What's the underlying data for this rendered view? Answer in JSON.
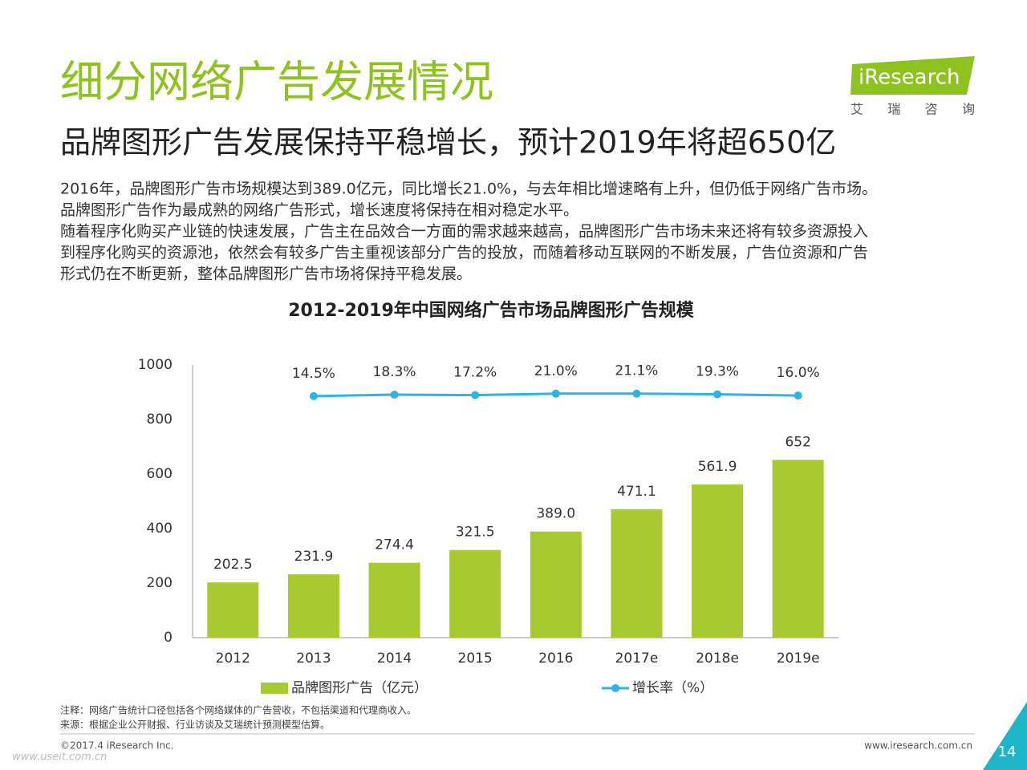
{
  "header": {
    "title": "细分网络广告发展情况",
    "subtitle": "品牌图形广告发展保持平稳增长，预计2019年将超650亿",
    "logo": "iResearch",
    "logo_sub": "艾 瑞 咨 询"
  },
  "body": {
    "lines": [
      "2016年，品牌图形广告市场规模达到389.0亿元，同比增长21.0%，与去年相比增速略有上升，但仍低于网络广告市场。",
      "品牌图形广告作为最成熟的网络广告形式，增长速度将保持在相对稳定水平。",
      "随着程序化购买产业链的快速发展，广告主在品效合一方面的需求越来越高，品牌图形广告市场未来还将有较多资源投入",
      "到程序化购买的资源池，依然会有较多广告主重视该部分广告的投放，而随着移动互联网的不断发展，广告位资源和广告",
      "形式仍在不断更新，整体品牌图形广告市场将保持平稳发展。"
    ]
  },
  "chart_data": {
    "type": "bar_line",
    "title": "2012-2019年中国网络广告市场品牌图形广告规模",
    "categories": [
      "2012",
      "2013",
      "2014",
      "2015",
      "2016",
      "2017e",
      "2018e",
      "2019e"
    ],
    "series": [
      {
        "name": "品牌图形广告（亿元）",
        "type": "bar",
        "color": "#a8c92f",
        "values": [
          202.5,
          231.9,
          274.4,
          321.5,
          389.0,
          471.1,
          561.9,
          652
        ],
        "value_labels": [
          "202.5",
          "231.9",
          "274.4",
          "321.5",
          "389.0",
          "471.1",
          "561.9",
          "652"
        ]
      },
      {
        "name": "增长率（%）",
        "type": "line",
        "axis": "y2",
        "color": "#2eb4e3",
        "values": [
          null,
          14.5,
          18.3,
          17.2,
          21.0,
          21.1,
          19.3,
          16.0
        ],
        "value_labels": [
          null,
          "14.5%",
          "18.3%",
          "17.2%",
          "21.0%",
          "21.1%",
          "19.3%",
          "16.0%"
        ]
      }
    ],
    "ylim": [
      0,
      1000
    ],
    "yticks": [
      0,
      200,
      400,
      600,
      800,
      1000
    ],
    "y2lim": [
      -625,
      97
    ],
    "grid": false,
    "legend": "bottom"
  },
  "footer": {
    "notes": [
      "注释：网络广告统计口径包括各个网络媒体的广告营收，不包括渠道和代理商收入。",
      "来源：根据企业公开财报、行业访谈及艾瑞统计预测模型估算。"
    ],
    "copyright": "©2017.4 iResearch Inc.",
    "site": "www.iresearch.com.cn",
    "page": "14",
    "watermark": "www.useit.com.cn"
  }
}
